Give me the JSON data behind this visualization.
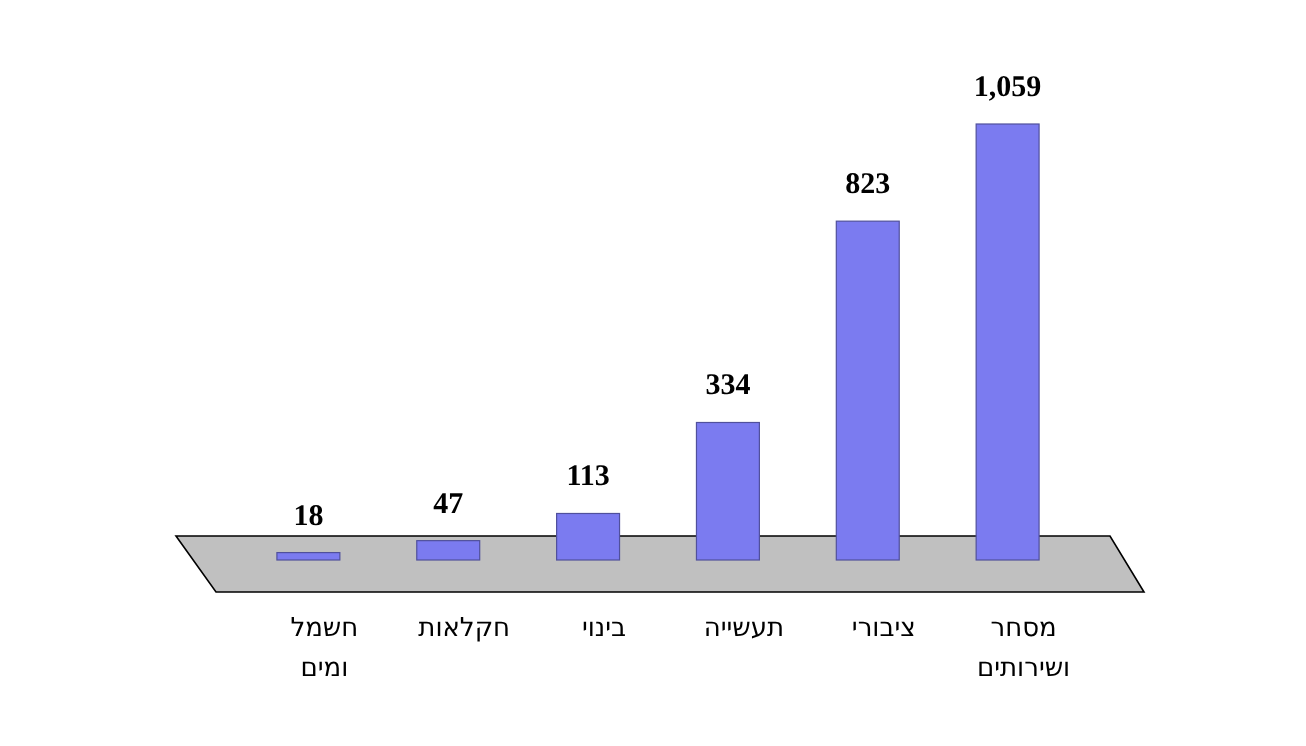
{
  "chart_data": {
    "type": "bar",
    "categories": [
      "חשמל ומים",
      "חקלאות",
      "בינוי",
      "תעשייה",
      "ציבורי",
      "מסחר ושירותים"
    ],
    "values": [
      18,
      47,
      113,
      334,
      823,
      1059
    ],
    "value_labels": [
      "18",
      "47",
      "113",
      "334",
      "823",
      "1,059"
    ],
    "color": "#7b7bf0"
  }
}
